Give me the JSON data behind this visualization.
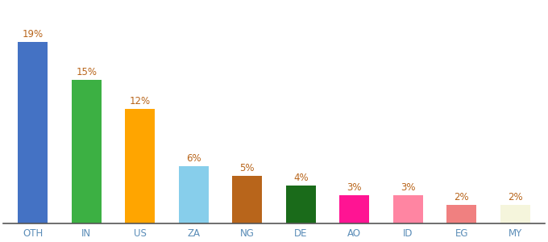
{
  "categories": [
    "OTH",
    "IN",
    "US",
    "ZA",
    "NG",
    "DE",
    "AO",
    "ID",
    "EG",
    "MY"
  ],
  "values": [
    19,
    15,
    12,
    6,
    5,
    4,
    3,
    3,
    2,
    2
  ],
  "bar_colors": [
    "#4472C4",
    "#3CB043",
    "#FFA500",
    "#87CEEB",
    "#B8651B",
    "#1A6B1A",
    "#FF1493",
    "#FF85A2",
    "#F08080",
    "#F5F5DC"
  ],
  "label_color": "#B8651B",
  "tick_color": "#5B8DB8",
  "background_color": "#ffffff",
  "label_fontsize": 8.5,
  "tick_fontsize": 8.5,
  "ylim": [
    0,
    23
  ],
  "bar_width": 0.55
}
